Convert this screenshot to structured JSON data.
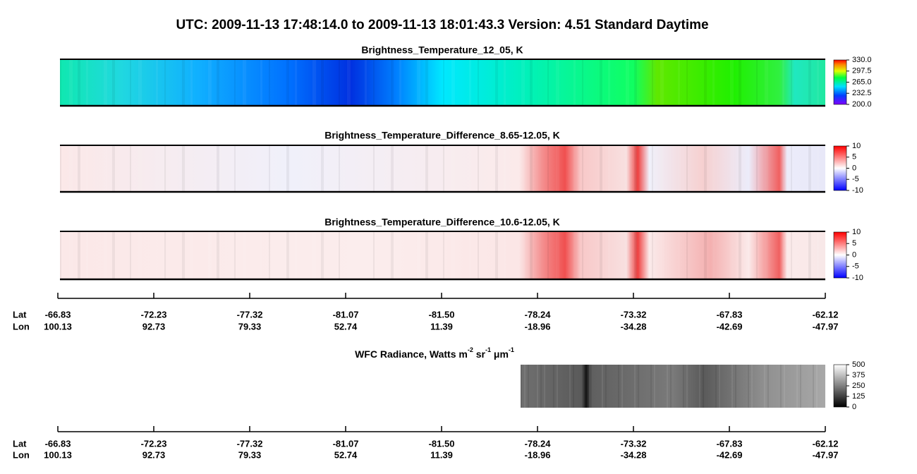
{
  "title": "UTC:  2009-11-13   17:48:14.0  to  2009-11-13   18:01:43.3    Version: 4.51  Standard Daytime",
  "panels": [
    {
      "title": "Brightness_Temperature_12_05, K",
      "colorbar": {
        "range": [
          200,
          330
        ],
        "ticks": [
          {
            "value": 330,
            "label": "330.0"
          },
          297.5,
          {
            "value": 265,
            "label": "265.0"
          },
          232.5,
          {
            "value": 200,
            "label": "200.0"
          }
        ]
      }
    },
    {
      "title": "Brightness_Temperature_Difference_8.65-12.05, K",
      "colorbar": {
        "range": [
          -10,
          10
        ],
        "ticks": [
          10,
          5,
          0,
          -5,
          -10
        ]
      }
    },
    {
      "title": "Brightness_Temperature_Difference_10.6-12.05, K",
      "colorbar": {
        "range": [
          -10,
          10
        ],
        "ticks": [
          10,
          5,
          0,
          -5,
          -10
        ]
      }
    }
  ],
  "wfc": {
    "title_parts": [
      {
        "text": "WFC Radiance, Watts m"
      },
      {
        "text": "-2",
        "sup": true
      },
      {
        "text": " sr"
      },
      {
        "text": "-1",
        "sup": true
      },
      {
        "text": " μm"
      },
      {
        "text": "-1",
        "sup": true
      }
    ],
    "colorbar": {
      "range": [
        0,
        500
      ],
      "ticks": [
        500,
        375,
        250,
        125,
        0
      ]
    }
  },
  "axes": [
    {
      "lat_label": "Lat",
      "lon_label": "Lon",
      "lat": [
        "-66.83",
        "-72.23",
        "-77.32",
        "-81.07",
        "-81.50",
        "-78.24",
        "-73.32",
        "-67.83",
        "-62.12"
      ],
      "lon": [
        "100.13",
        "92.73",
        "79.33",
        "52.74",
        "11.39",
        "-18.96",
        "-34.28",
        "-42.69",
        "-47.97"
      ]
    },
    {
      "lat_label": "Lat",
      "lon_label": "Lon",
      "lat": [
        "-66.83",
        "-72.23",
        "-77.32",
        "-81.07",
        "-81.50",
        "-78.24",
        "-73.32",
        "-67.83",
        "-62.12"
      ],
      "lon": [
        "100.13",
        "92.73",
        "79.33",
        "52.74",
        "11.39",
        "-18.96",
        "-34.28",
        "-42.69",
        "-47.97"
      ]
    }
  ]
}
